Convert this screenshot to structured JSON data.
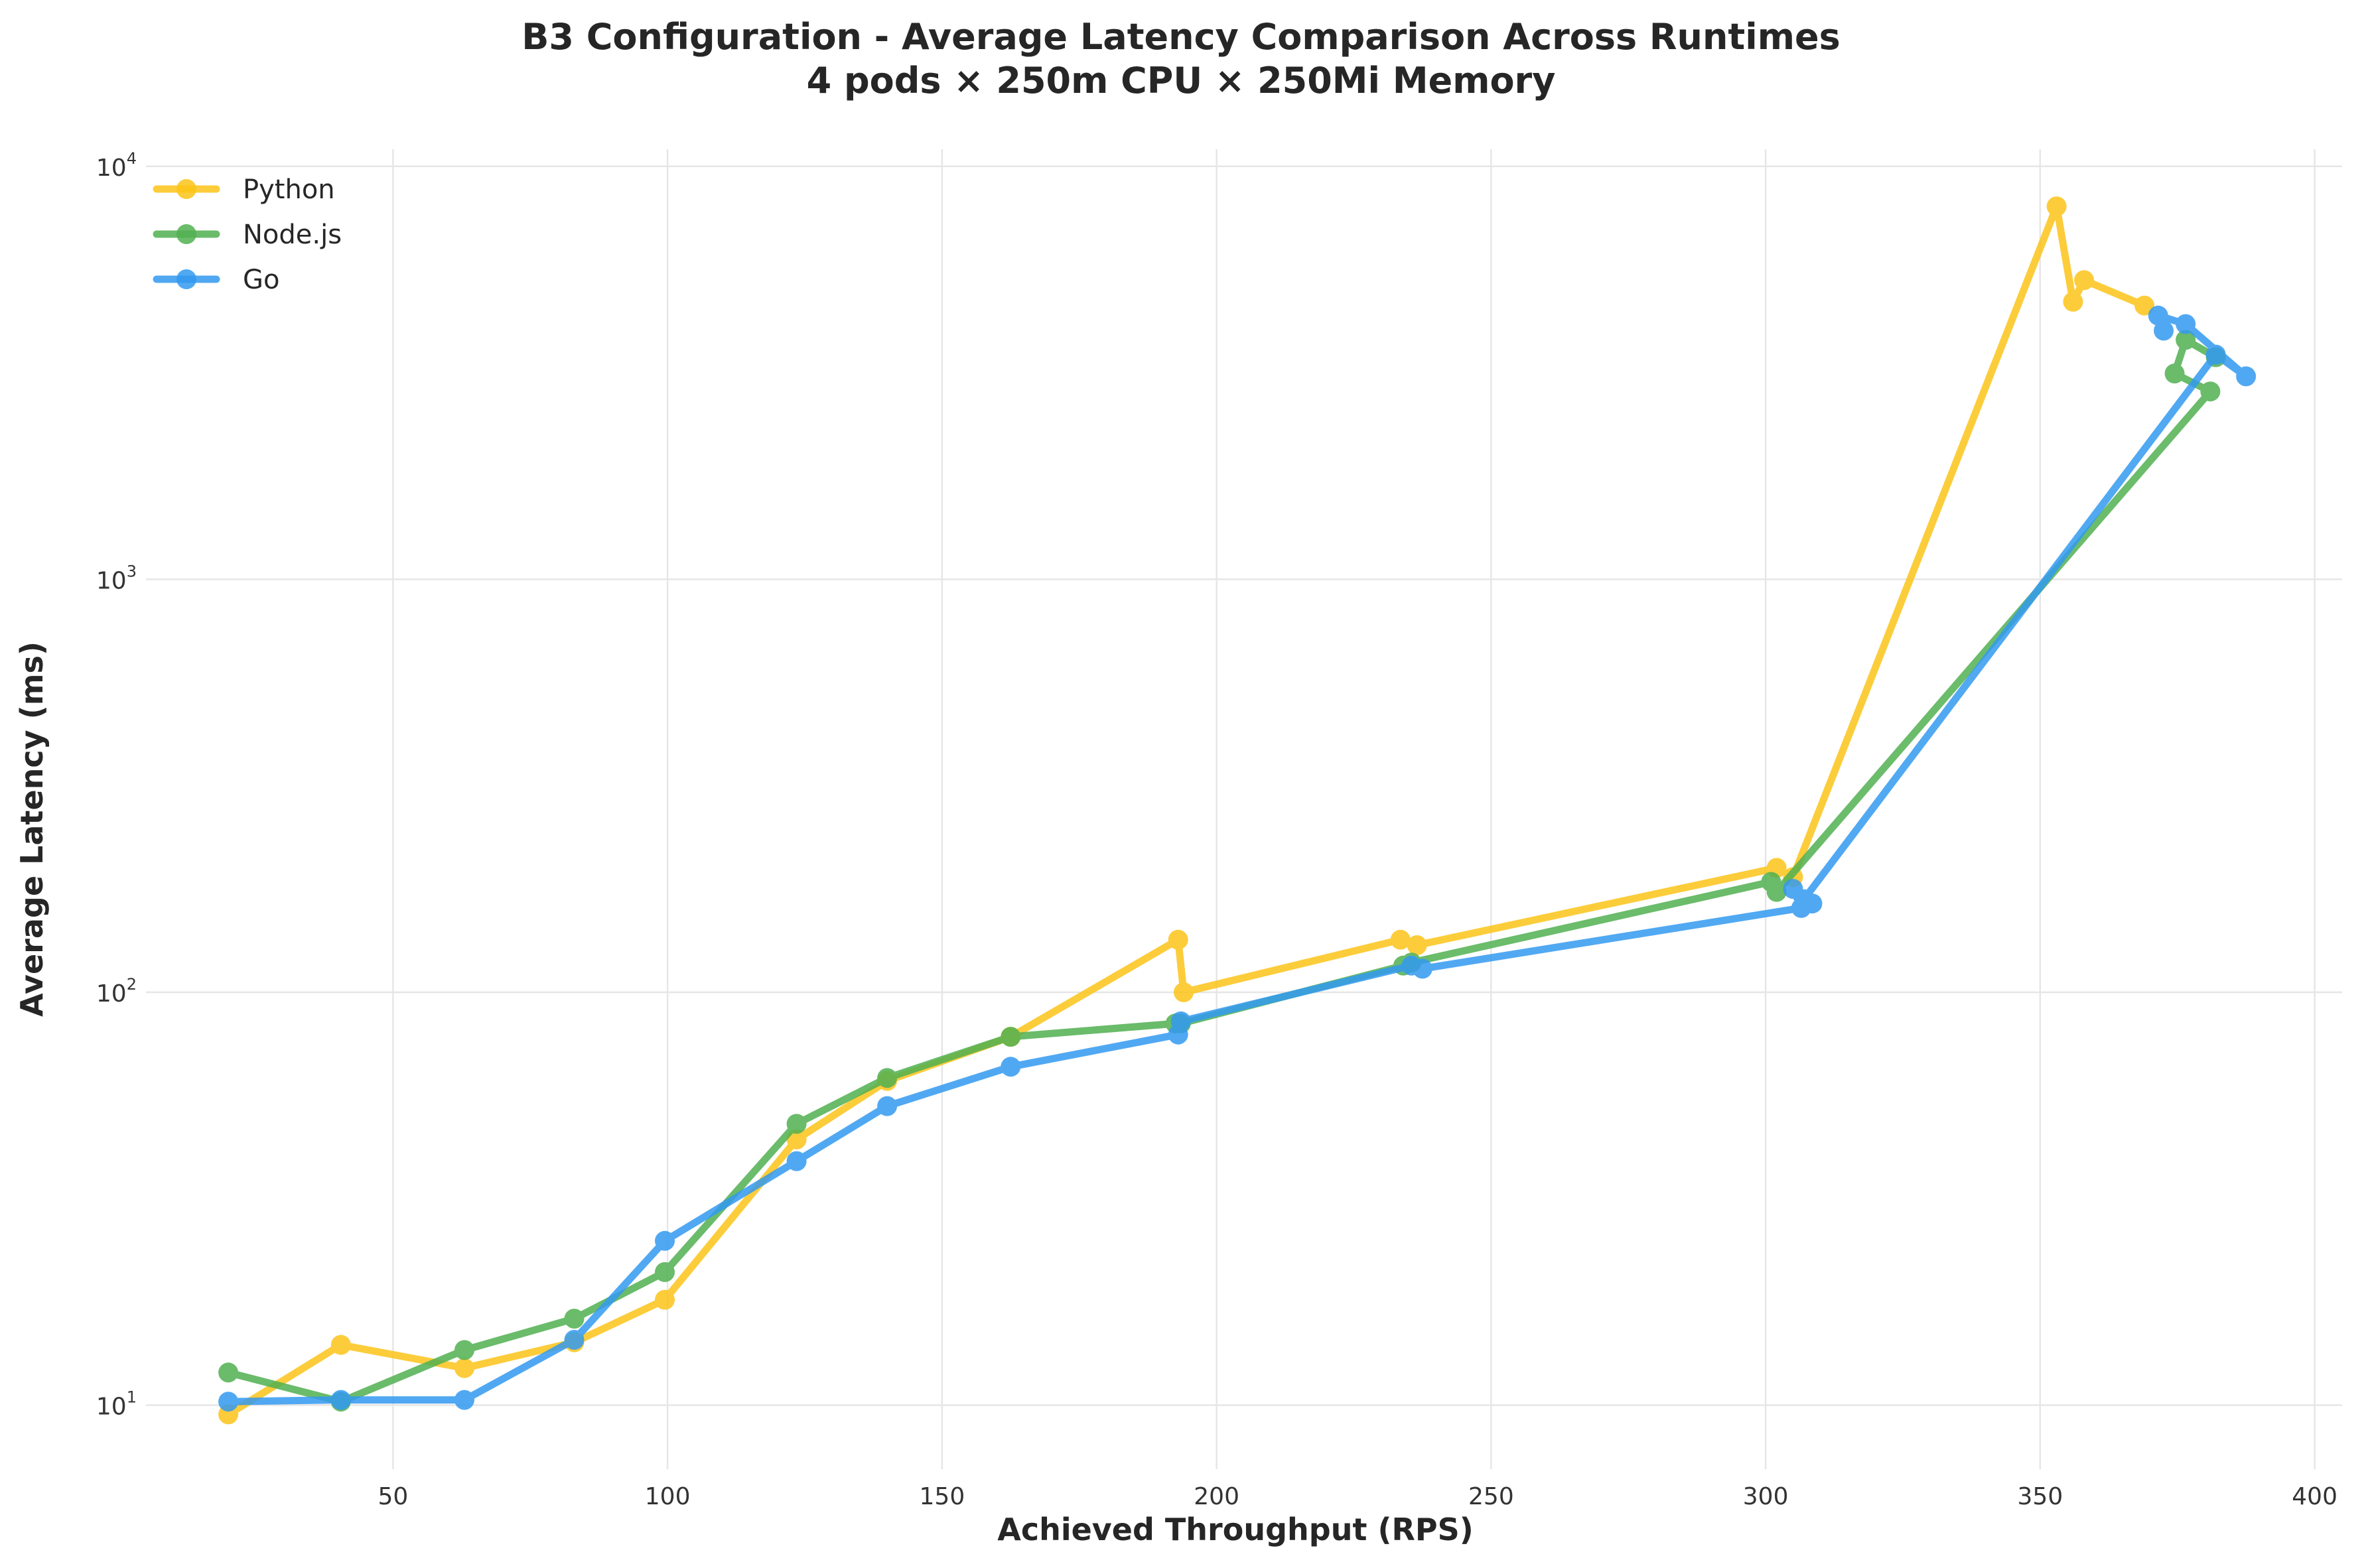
{
  "chart_data": {
    "type": "line",
    "title": "B3 Configuration - Average Latency Comparison Across Runtimes",
    "subtitle": "4 pods × 250m CPU × 250Mi Memory",
    "xlabel": "Achieved Throughput (RPS)",
    "ylabel": "Average Latency (ms)",
    "xlim": [
      5,
      405
    ],
    "ylim": [
      7,
      11000
    ],
    "yscale": "log",
    "x_ticks": [
      50,
      100,
      150,
      200,
      250,
      300,
      350,
      400
    ],
    "y_ticks": [
      {
        "value": 10,
        "base": "10",
        "exp": "1"
      },
      {
        "value": 100,
        "base": "10",
        "exp": "2"
      },
      {
        "value": 1000,
        "base": "10",
        "exp": "3"
      },
      {
        "value": 10000,
        "base": "10",
        "exp": "4"
      }
    ],
    "grid": true,
    "legend_position": "top-left",
    "series": [
      {
        "name": "Python",
        "color": "#fcc419",
        "points": [
          [
            20,
            9.5
          ],
          [
            40.5,
            14
          ],
          [
            63,
            12.3
          ],
          [
            83,
            14.2
          ],
          [
            99.5,
            18
          ],
          [
            123.5,
            44
          ],
          [
            140,
            61
          ],
          [
            162.5,
            78
          ],
          [
            193,
            134
          ],
          [
            194,
            100
          ],
          [
            233.5,
            134
          ],
          [
            236.5,
            130
          ],
          [
            302,
            200
          ],
          [
            305,
            190
          ],
          [
            353,
            8000
          ],
          [
            356,
            4700
          ],
          [
            358,
            5300
          ],
          [
            369,
            4600
          ]
        ]
      },
      {
        "name": "Node.js",
        "color": "#51b051",
        "points": [
          [
            20,
            12
          ],
          [
            40.5,
            10.2
          ],
          [
            63,
            13.6
          ],
          [
            83,
            16.2
          ],
          [
            99.5,
            21
          ],
          [
            123.5,
            48
          ],
          [
            140,
            62
          ],
          [
            162.5,
            78
          ],
          [
            192.5,
            84
          ],
          [
            193.5,
            84
          ],
          [
            234,
            116
          ],
          [
            235.5,
            118
          ],
          [
            301,
            185
          ],
          [
            302,
            175
          ],
          [
            381,
            2850
          ],
          [
            374.5,
            3150
          ],
          [
            376.5,
            3800
          ],
          [
            382,
            3450
          ]
        ]
      },
      {
        "name": "Go",
        "color": "#339af0",
        "points": [
          [
            20,
            10.2
          ],
          [
            40.5,
            10.3
          ],
          [
            63,
            10.3
          ],
          [
            83,
            14.4
          ],
          [
            99.5,
            25
          ],
          [
            123.5,
            39
          ],
          [
            140,
            53
          ],
          [
            162.5,
            66
          ],
          [
            193,
            79
          ],
          [
            193.5,
            85
          ],
          [
            235.5,
            116
          ],
          [
            237.5,
            114
          ],
          [
            306.5,
            160
          ],
          [
            305,
            178
          ],
          [
            308.5,
            164
          ],
          [
            307,
            168
          ],
          [
            382,
            3500
          ],
          [
            387.5,
            3100
          ],
          [
            376.5,
            4150
          ],
          [
            371.5,
            4350
          ],
          [
            372.5,
            4000
          ]
        ]
      }
    ]
  }
}
